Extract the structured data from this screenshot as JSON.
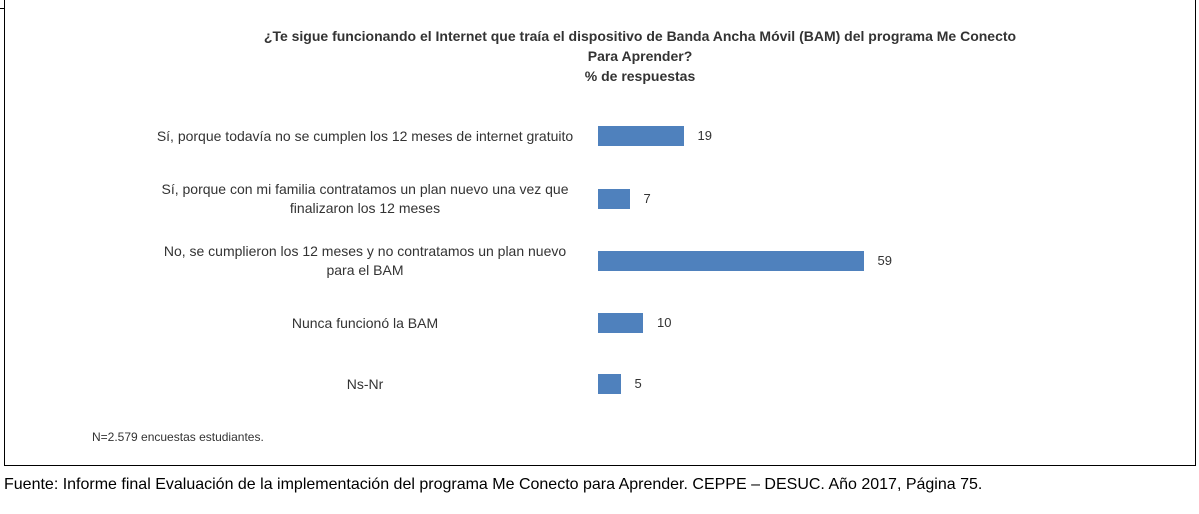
{
  "chart_data": {
    "type": "bar",
    "orientation": "horizontal",
    "title": "¿Te sigue funcionando el Internet que traía el dispositivo de Banda Ancha Móvil (BAM) del programa Me Conecto Para Aprender?",
    "subtitle": "% de respuestas",
    "categories": [
      "Sí, porque todavía no se cumplen los 12 meses de internet gratuito",
      "Sí, porque con mi familia contratamos un plan nuevo una vez que finalizaron los 12 meses",
      "No, se cumplieron los 12 meses y no contratamos un plan nuevo para el BAM",
      "Nunca funcionó la BAM",
      "Ns-Nr"
    ],
    "values": [
      19,
      7,
      59,
      10,
      5
    ],
    "color": "#4f81bd",
    "note": "N=2.579 encuestas estudiantes.",
    "source": "Fuente: Informe final Evaluación de la implementación del programa Me Conecto para Aprender. CEPPE – DESUC. Año 2017, Página 75."
  }
}
